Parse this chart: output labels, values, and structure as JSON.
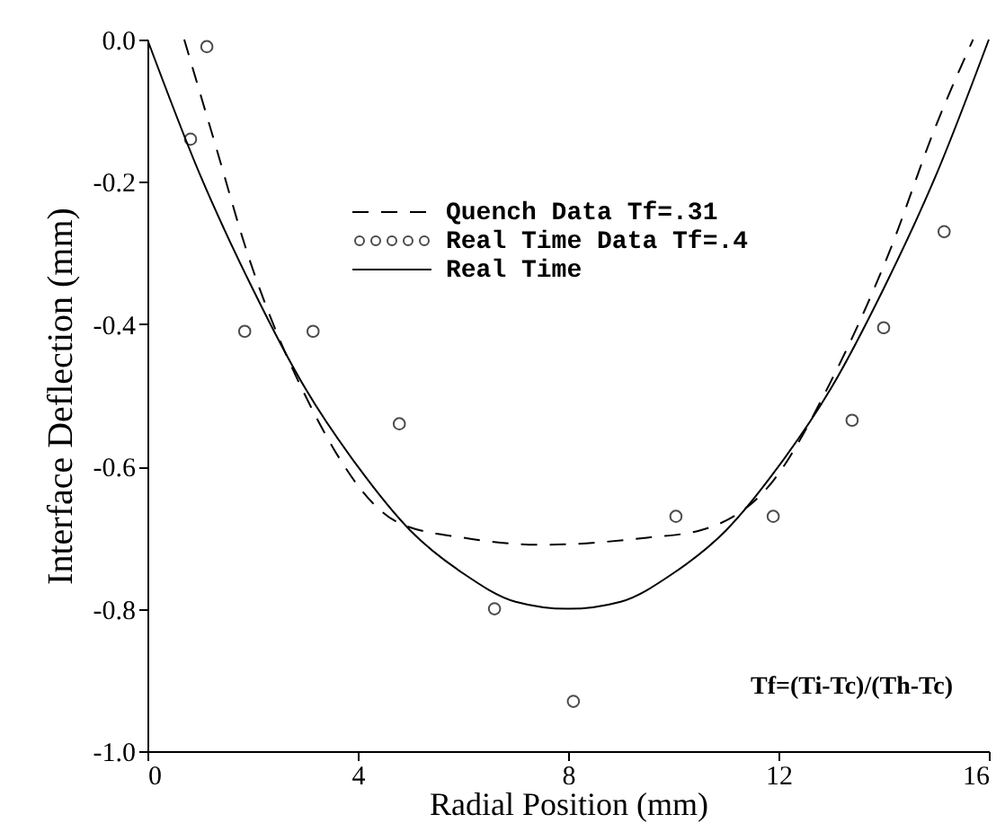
{
  "chart_data": {
    "type": "line",
    "xlabel": "Radial Position (mm)",
    "ylabel": "Interface Deflection (mm)",
    "xlim": [
      0,
      16
    ],
    "xticks": [
      0,
      4,
      8,
      12,
      16
    ],
    "ylim": [
      -1.0,
      0.0
    ],
    "yticks": [
      {
        "value": 0,
        "label": "0.0"
      },
      {
        "value": -0.2,
        "label": "-0.2"
      },
      {
        "value": -0.4,
        "label": "-0.4"
      },
      {
        "value": -0.6,
        "label": "-0.6"
      },
      {
        "value": -0.8,
        "label": "-0.8"
      },
      {
        "value": -1.0,
        "label": "-1.0"
      }
    ],
    "legend": "top",
    "annotations": [
      "Tf=(Ti-Tc)/(Th-Tc)"
    ],
    "series": [
      {
        "name": "Quench Data Tf=.31",
        "line_style": "dashed",
        "color": "#000000",
        "x": [
          0.7,
          1.3,
          1.9,
          3.0,
          4.8,
          6.0,
          7.5,
          9.5,
          10.5,
          11.9,
          13.0,
          14.1,
          15.0,
          15.7
        ],
        "values": [
          0.0,
          -0.15,
          -0.3,
          -0.5,
          -0.68,
          -0.7,
          -0.71,
          -0.7,
          -0.69,
          -0.62,
          -0.48,
          -0.3,
          -0.12,
          0.0
        ]
      },
      {
        "name": "Real Time Data Tf=.4",
        "type": "scatter",
        "marker": "circle",
        "color": "#000000",
        "x": [
          1.13,
          0.82,
          1.85,
          3.15,
          4.79,
          6.6,
          8.1,
          10.05,
          11.9,
          13.4,
          14.0,
          15.15
        ],
        "values": [
          -0.01,
          -0.14,
          -0.41,
          -0.41,
          -0.54,
          -0.8,
          -0.93,
          -0.67,
          -0.67,
          -0.535,
          -0.405,
          -0.27
        ]
      },
      {
        "name": "Real Time",
        "line_style": "solid",
        "color": "#000000",
        "x": [
          0,
          1,
          2,
          3,
          4,
          5,
          6,
          7,
          8,
          9,
          10,
          11,
          12,
          13,
          14,
          15,
          16
        ],
        "values": [
          0.0,
          -0.19,
          -0.35,
          -0.49,
          -0.6,
          -0.69,
          -0.75,
          -0.79,
          -0.8,
          -0.79,
          -0.75,
          -0.69,
          -0.6,
          -0.49,
          -0.35,
          -0.19,
          0.0
        ]
      }
    ]
  }
}
